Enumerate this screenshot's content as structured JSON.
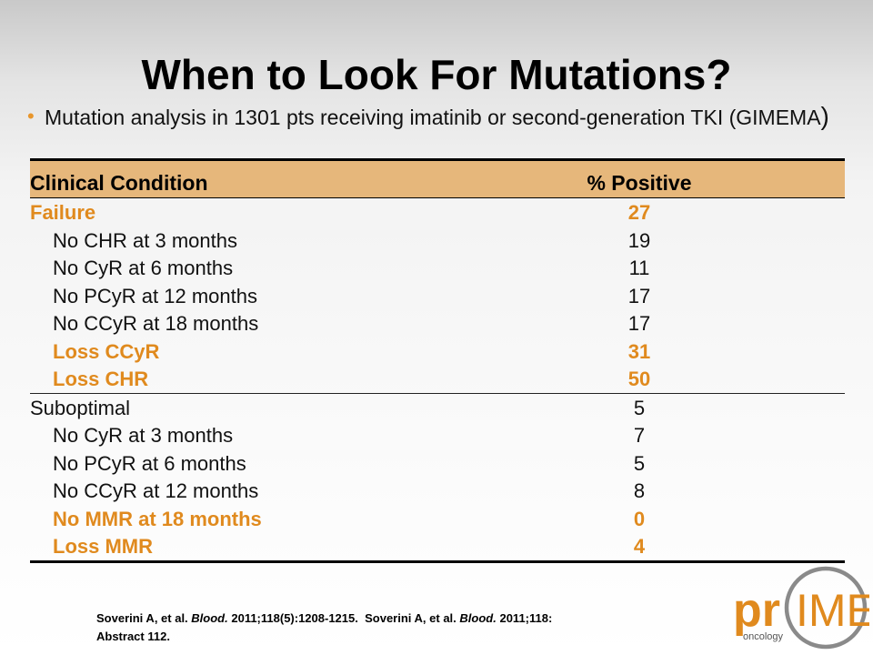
{
  "slide": {
    "title": "When to Look For Mutations?",
    "bullet": "Mutation analysis in 1301 pts receiving imatinib or second-generation TKI (GIMEMA",
    "bullet_end": ")"
  },
  "table": {
    "headers": [
      "Clinical Condition",
      "% Positive"
    ],
    "rows": [
      {
        "condition": "Failure",
        "value": "27",
        "highlight": true,
        "indent": false
      },
      {
        "condition": "No CHR at 3 months",
        "value": "19",
        "highlight": false,
        "indent": true
      },
      {
        "condition": "No CyR at 6 months",
        "value": "11",
        "highlight": false,
        "indent": true
      },
      {
        "condition": "No PCyR at 12 months",
        "value": "17",
        "highlight": false,
        "indent": true
      },
      {
        "condition": "No CCyR at 18 months",
        "value": "17",
        "highlight": false,
        "indent": true
      },
      {
        "condition": "Loss CCyR",
        "value": "31",
        "highlight": true,
        "indent": true
      },
      {
        "condition": "Loss CHR",
        "value": "50",
        "highlight": true,
        "indent": true
      },
      {
        "condition": "Suboptimal",
        "value": "5",
        "highlight": false,
        "indent": false
      },
      {
        "condition": "No CyR at 3 months",
        "value": "7",
        "highlight": false,
        "indent": true
      },
      {
        "condition": "No PCyR at 6 months",
        "value": "5",
        "highlight": false,
        "indent": true
      },
      {
        "condition": "No CCyR at 12 months",
        "value": "8",
        "highlight": false,
        "indent": true
      },
      {
        "condition": "No MMR at 18 months",
        "value": "0",
        "highlight": true,
        "indent": true
      },
      {
        "condition": "Loss MMR",
        "value": "4",
        "highlight": true,
        "indent": true
      }
    ]
  },
  "footnote": {
    "ref1_authors": "Soverini A, et al.",
    "ref1_journal": "Blood.",
    "ref1_citation": "2011;118(5):1208-1215.",
    "ref2_authors": "Soverini A, et al.",
    "ref2_journal": "Blood.",
    "ref2_citation": "2011;118:",
    "ref2_line2": "Abstract 112."
  },
  "logo": {
    "word_left": "pr",
    "word_right": "IME",
    "sub": "oncology"
  },
  "colors": {
    "accent": "#e08a1e",
    "header_bg": "#e6b77b",
    "logo_gray": "#8a8a8a"
  }
}
